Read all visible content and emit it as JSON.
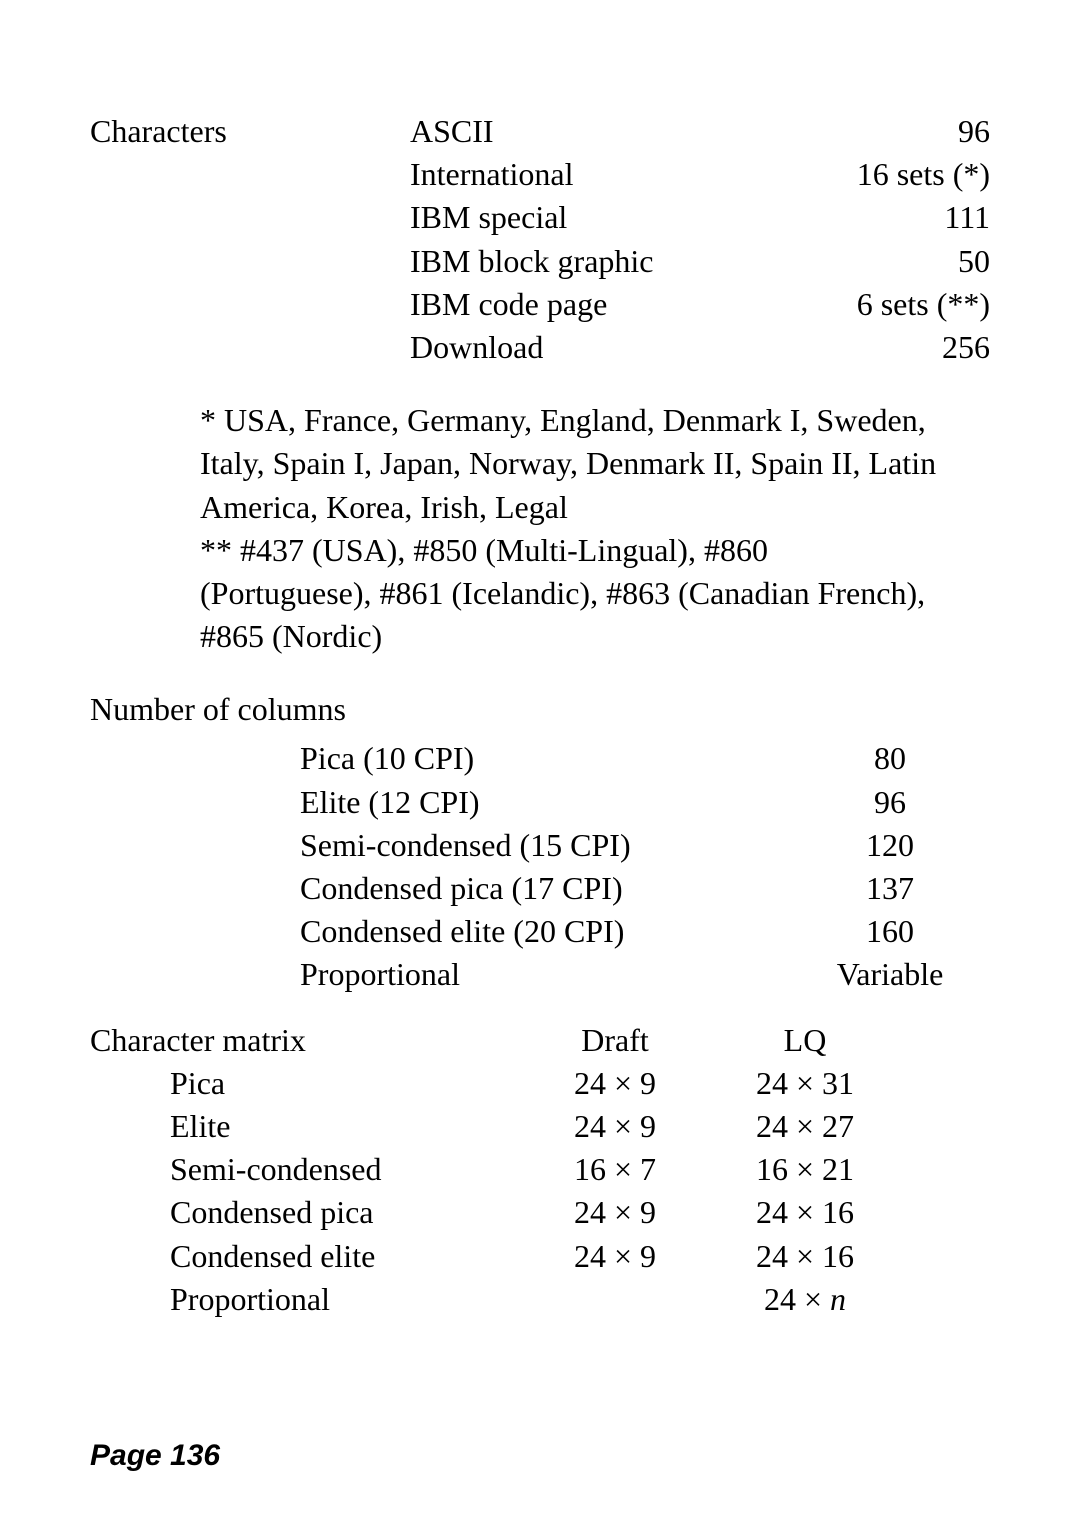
{
  "characters": {
    "label": "Characters",
    "rows": [
      {
        "name": "ASCII",
        "value": "96"
      },
      {
        "name": "International",
        "value": "16 sets (*)"
      },
      {
        "name": "IBM special",
        "value": "111"
      },
      {
        "name": "IBM block graphic",
        "value": "50"
      },
      {
        "name": "IBM code page",
        "value": "6 sets (**)"
      },
      {
        "name": "Download",
        "value": "256"
      }
    ]
  },
  "footnote1": "* USA, France, Germany, England, Denmark I, Sweden, Italy, Spain I, Japan, Norway, Denmark II, Spain II, Latin America, Korea, Irish, Legal",
  "footnote2": "** #437 (USA), #850 (Multi-Lingual), #860 (Portuguese), #861 (Icelandic), #863 (Canadian French), #865 (Nordic)",
  "columns": {
    "title": "Number of columns",
    "rows": [
      {
        "name": "Pica (10 CPI)",
        "value": "80"
      },
      {
        "name": "Elite (12 CPI)",
        "value": "96"
      },
      {
        "name": "Semi-condensed (15 CPI)",
        "value": "120"
      },
      {
        "name": "Condensed pica (17 CPI)",
        "value": "137"
      },
      {
        "name": "Condensed elite (20 CPI)",
        "value": "160"
      },
      {
        "name": "Proportional",
        "value": "Variable"
      }
    ]
  },
  "matrix": {
    "title": "Character matrix",
    "head_draft": "Draft",
    "head_lq": "LQ",
    "rows": [
      {
        "name": "Pica",
        "draft": "24 × 9",
        "lq": "24 × 31"
      },
      {
        "name": "Elite",
        "draft": "24 × 9",
        "lq": "24 × 27"
      },
      {
        "name": "Semi-condensed",
        "draft": "16 × 7",
        "lq": "16 × 21"
      },
      {
        "name": "Condensed pica",
        "draft": "24 × 9",
        "lq": "24 × 16"
      },
      {
        "name": "Condensed elite",
        "draft": "24 × 9",
        "lq": "24 × 16"
      },
      {
        "name": "Proportional",
        "draft": "",
        "lq": "24 × n"
      }
    ]
  },
  "italic_n": "n",
  "page_footer": "Page 136"
}
